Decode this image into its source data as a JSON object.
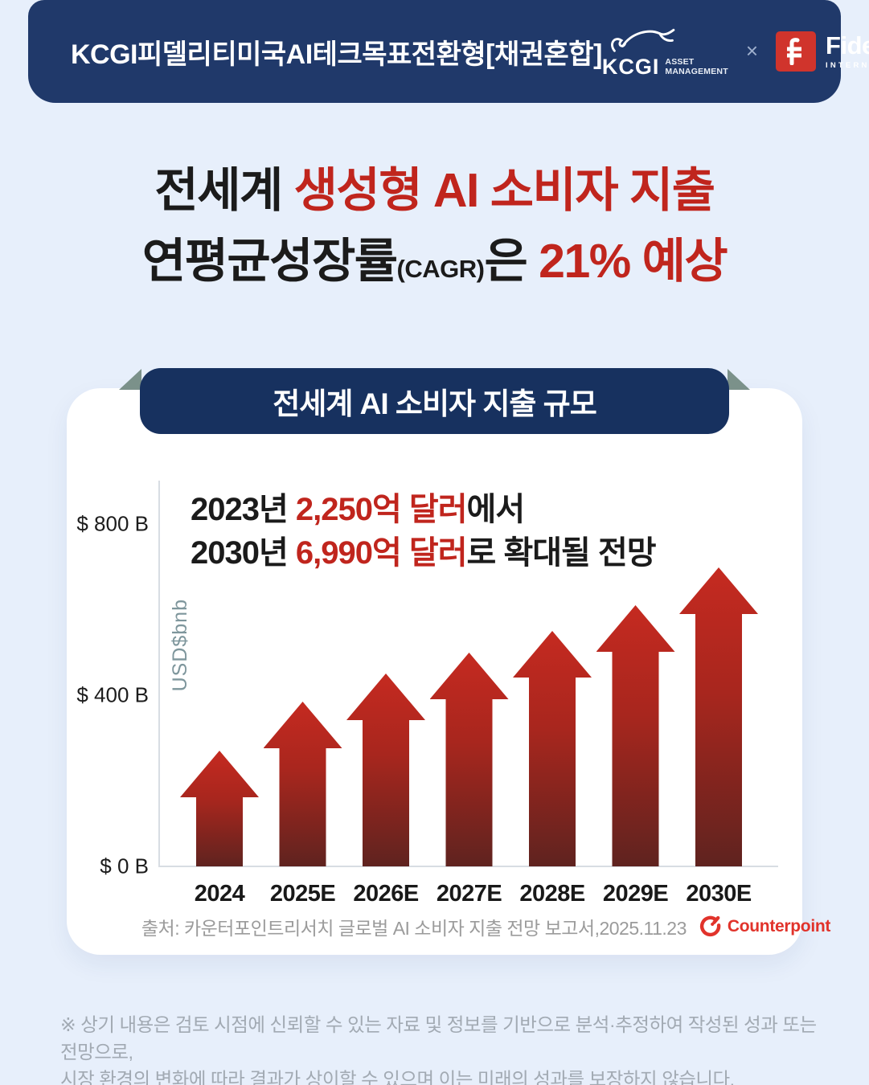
{
  "page": {
    "bg_color": "#e7effb"
  },
  "header": {
    "bg_color": "#20396a",
    "title": "KCGI피델리티미국AI테크목표전환형[채권혼합]",
    "kcgi": {
      "wordmark": "KCGI",
      "sub_line1": "ASSET",
      "sub_line2": "MANAGEMENT"
    },
    "separator": "×",
    "fidelity": {
      "wordmark": "Fidelity",
      "sub": "INTERNATIONAL",
      "box_color": "#d0342c"
    }
  },
  "headline": {
    "dark_color": "#1b1b1b",
    "red_color": "#c0251d",
    "line1": {
      "black": "전세계 ",
      "red": "생성형 AI 소비자 지출"
    },
    "line2": {
      "black1": "연평균성장률",
      "paren": "(CAGR)",
      "black2": "은 ",
      "red": "21% 예상"
    }
  },
  "card": {
    "banner": {
      "label": "전세계 AI 소비자 지출 규모",
      "bg_color": "#17315f",
      "fold_color": "#7b918a"
    }
  },
  "chart_data": {
    "type": "bar",
    "title": "전세계 AI 소비자 지출 규모",
    "categories": [
      "2024",
      "2025E",
      "2026E",
      "2027E",
      "2028E",
      "2029E",
      "2030E"
    ],
    "values": [
      270,
      385,
      450,
      500,
      550,
      610,
      699
    ],
    "unit": "USD billions",
    "values_note": "heights estimated from chart; 2023 base $225B and 2030E $699B stated in annotation",
    "xlabel": "",
    "ylabel": "USD$bnb",
    "ylim": [
      0,
      800
    ],
    "yticks": [
      {
        "label": "$ 800 B",
        "value": 800
      },
      {
        "label": "$ 400 B",
        "value": 400
      },
      {
        "label": "$ 0 B",
        "value": 0
      }
    ],
    "grid": false,
    "legend": null,
    "bar_gradient_top": "#c52a20",
    "bar_gradient_mid": "#a8261e",
    "bar_gradient_bottom": "#5f231f",
    "annotation": {
      "line1": {
        "black1": "2023년 ",
        "red": "2,250억 달러",
        "black2": "에서"
      },
      "line2": {
        "black1": "2030년 ",
        "red": "6,990억 달러",
        "black2": "로 확대될 전망"
      }
    },
    "source": {
      "text": "출처: 카운터포인트리서치 글로벌 AI 소비자 지출 전망 보고서,2025.11.23",
      "logo_text": "Counterpoint",
      "logo_color": "#e1332b"
    }
  },
  "footer": {
    "line1": "※ 상기 내용은 검토 시점에 신뢰할 수 있는 자료 및 정보를 기반으로 분석·추정하여 작성된 성과 또는 전망으로,",
    "line2": "시장 환경의 변화에 따라 결과가 상이할 수 있으며 이는 미래의 성과를 보장하지 않습니다."
  }
}
